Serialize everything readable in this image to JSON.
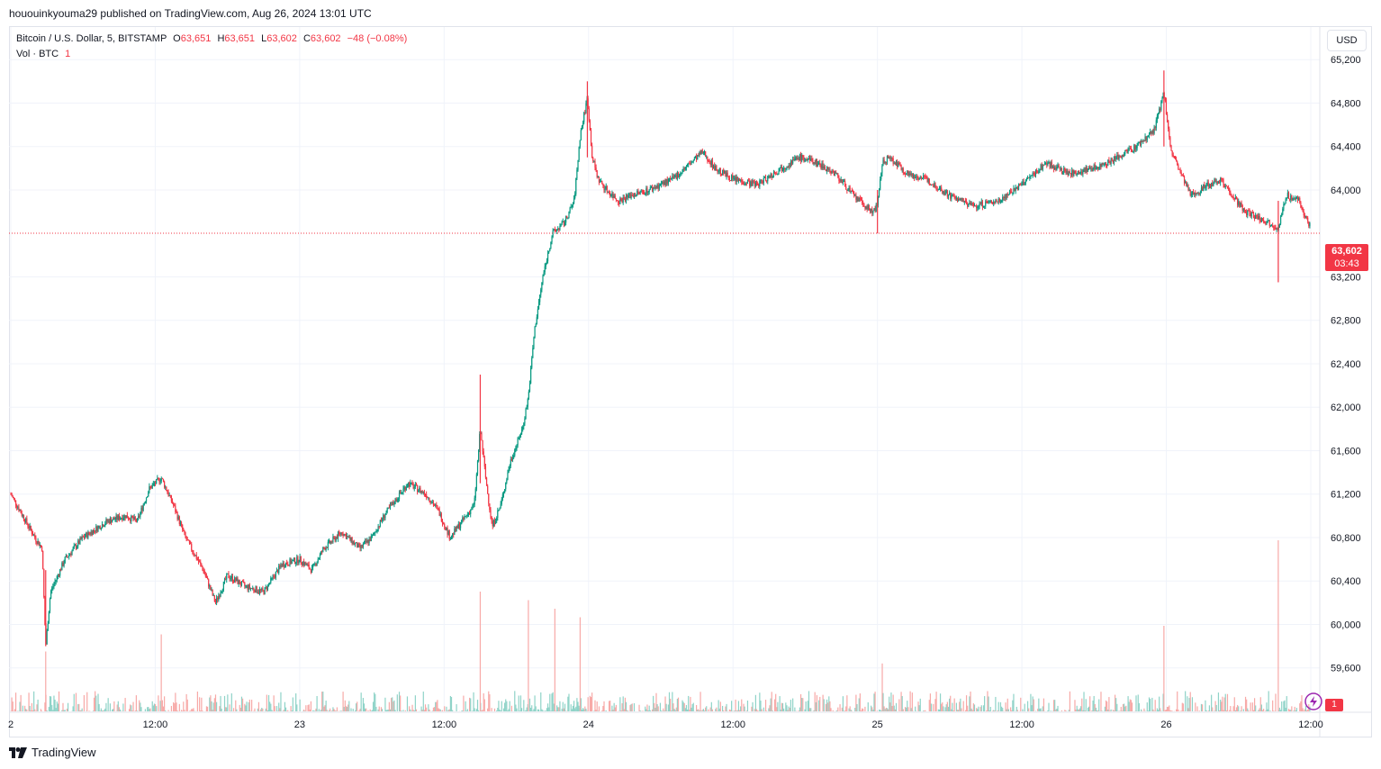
{
  "publish_line": "hououinkyouma29 published on TradingView.com, Aug 26, 2024 13:01 UTC",
  "legend": {
    "symbol": "Bitcoin / U.S. Dollar, 5, BITSTAMP",
    "o_label": "O",
    "o_val": "63,651",
    "h_label": "H",
    "h_val": "63,651",
    "l_label": "L",
    "l_val": "63,602",
    "c_label": "C",
    "c_val": "63,602",
    "change": "−48 (−0.08%)",
    "vol_label": "Vol · BTC",
    "vol_val": "1"
  },
  "currency": "USD",
  "price_badge": {
    "price": "63,602",
    "countdown": "03:43"
  },
  "vol_badge": "1",
  "footer": {
    "brand": "TradingView"
  },
  "colors": {
    "up": "#089981",
    "down": "#f23645",
    "vol_up": "#8fd3c8",
    "vol_down": "#f7a9a7",
    "grid": "#f0f3fa",
    "last_line": "#f23645"
  },
  "chart_data": {
    "type": "candlestick",
    "symbol": "BTCUSD",
    "timeframe": "5",
    "ylim": [
      59200,
      65500
    ],
    "y_ticks": [
      "65,200",
      "64,800",
      "64,400",
      "64,000",
      "63,200",
      "62,800",
      "62,400",
      "62,000",
      "61,600",
      "61,200",
      "60,800",
      "60,400",
      "60,000",
      "59,600"
    ],
    "y_tick_values": [
      65200,
      64800,
      64400,
      64000,
      63200,
      62800,
      62400,
      62000,
      61600,
      61200,
      60800,
      60400,
      60000,
      59600
    ],
    "x_ticks": [
      "2",
      "12:00",
      "23",
      "12:00",
      "24",
      "12:00",
      "25",
      "12:00",
      "26",
      "12:00"
    ],
    "x_tick_hours": [
      0,
      12,
      24,
      36,
      48,
      60,
      72,
      84,
      96,
      108
    ],
    "x_range_hours": [
      0,
      108.3
    ],
    "last_price": 63602,
    "price_path": [
      [
        0.0,
        61200
      ],
      [
        1.0,
        61000
      ],
      [
        2.0,
        60800
      ],
      [
        2.6,
        60700
      ],
      [
        2.9,
        59800
      ],
      [
        3.3,
        60300
      ],
      [
        4.5,
        60600
      ],
      [
        6.0,
        60800
      ],
      [
        8.0,
        60950
      ],
      [
        9.5,
        61000
      ],
      [
        10.5,
        60950
      ],
      [
        11.5,
        61250
      ],
      [
        12.5,
        61350
      ],
      [
        13.5,
        61100
      ],
      [
        14.5,
        60800
      ],
      [
        16.0,
        60500
      ],
      [
        17.0,
        60200
      ],
      [
        18.0,
        60450
      ],
      [
        19.5,
        60350
      ],
      [
        21.0,
        60300
      ],
      [
        22.5,
        60550
      ],
      [
        24.0,
        60600
      ],
      [
        25.0,
        60500
      ],
      [
        26.0,
        60700
      ],
      [
        27.5,
        60850
      ],
      [
        29.0,
        60700
      ],
      [
        30.0,
        60800
      ],
      [
        31.0,
        61000
      ],
      [
        32.0,
        61150
      ],
      [
        33.0,
        61300
      ],
      [
        34.5,
        61200
      ],
      [
        35.5,
        61050
      ],
      [
        36.5,
        60800
      ],
      [
        37.5,
        60950
      ],
      [
        38.5,
        61100
      ],
      [
        39.0,
        61800
      ],
      [
        39.5,
        61300
      ],
      [
        40.0,
        60900
      ],
      [
        40.7,
        61100
      ],
      [
        41.5,
        61500
      ],
      [
        42.5,
        61800
      ],
      [
        43.0,
        62100
      ],
      [
        43.5,
        62700
      ],
      [
        44.2,
        63200
      ],
      [
        45.0,
        63600
      ],
      [
        46.0,
        63700
      ],
      [
        46.8,
        63900
      ],
      [
        47.3,
        64500
      ],
      [
        47.9,
        64850
      ],
      [
        48.3,
        64300
      ],
      [
        48.8,
        64100
      ],
      [
        49.5,
        64000
      ],
      [
        50.5,
        63900
      ],
      [
        51.5,
        63950
      ],
      [
        53.0,
        64000
      ],
      [
        55.0,
        64100
      ],
      [
        56.5,
        64250
      ],
      [
        57.5,
        64350
      ],
      [
        58.5,
        64200
      ],
      [
        60.0,
        64100
      ],
      [
        62.0,
        64050
      ],
      [
        64.0,
        64200
      ],
      [
        65.5,
        64300
      ],
      [
        67.0,
        64250
      ],
      [
        68.5,
        64150
      ],
      [
        70.0,
        63950
      ],
      [
        71.5,
        63800
      ],
      [
        72.0,
        63850
      ],
      [
        72.4,
        64250
      ],
      [
        73.0,
        64300
      ],
      [
        74.5,
        64150
      ],
      [
        76.0,
        64100
      ],
      [
        78.0,
        63950
      ],
      [
        80.0,
        63850
      ],
      [
        82.0,
        63900
      ],
      [
        84.0,
        64050
      ],
      [
        86.0,
        64250
      ],
      [
        88.0,
        64150
      ],
      [
        90.0,
        64200
      ],
      [
        92.0,
        64300
      ],
      [
        93.5,
        64400
      ],
      [
        95.0,
        64550
      ],
      [
        95.8,
        64900
      ],
      [
        96.4,
        64350
      ],
      [
        97.0,
        64200
      ],
      [
        98.0,
        63950
      ],
      [
        99.5,
        64050
      ],
      [
        100.5,
        64100
      ],
      [
        101.5,
        63950
      ],
      [
        102.5,
        63800
      ],
      [
        103.5,
        63750
      ],
      [
        104.5,
        63700
      ],
      [
        105.3,
        63650
      ],
      [
        106.0,
        63950
      ],
      [
        107.0,
        63900
      ],
      [
        108.0,
        63650
      ]
    ],
    "spikes": [
      {
        "h": 2.9,
        "high": 60500,
        "low": 59800
      },
      {
        "h": 39.0,
        "high": 62300,
        "low": 61300
      },
      {
        "h": 47.9,
        "high": 65000,
        "low": 64300
      },
      {
        "h": 95.8,
        "high": 65100,
        "low": 64400
      },
      {
        "h": 105.3,
        "high": 63900,
        "low": 63150
      },
      {
        "h": 72.0,
        "high": 64000,
        "low": 63600
      }
    ],
    "volume_spikes": [
      {
        "h": 2.9,
        "v": 0.35
      },
      {
        "h": 12.5,
        "v": 0.45
      },
      {
        "h": 39.0,
        "v": 0.7
      },
      {
        "h": 43.0,
        "v": 0.65
      },
      {
        "h": 45.2,
        "v": 0.6
      },
      {
        "h": 47.3,
        "v": 0.55
      },
      {
        "h": 72.4,
        "v": 0.28
      },
      {
        "h": 95.8,
        "v": 0.5
      },
      {
        "h": 105.3,
        "v": 1.0
      }
    ]
  }
}
